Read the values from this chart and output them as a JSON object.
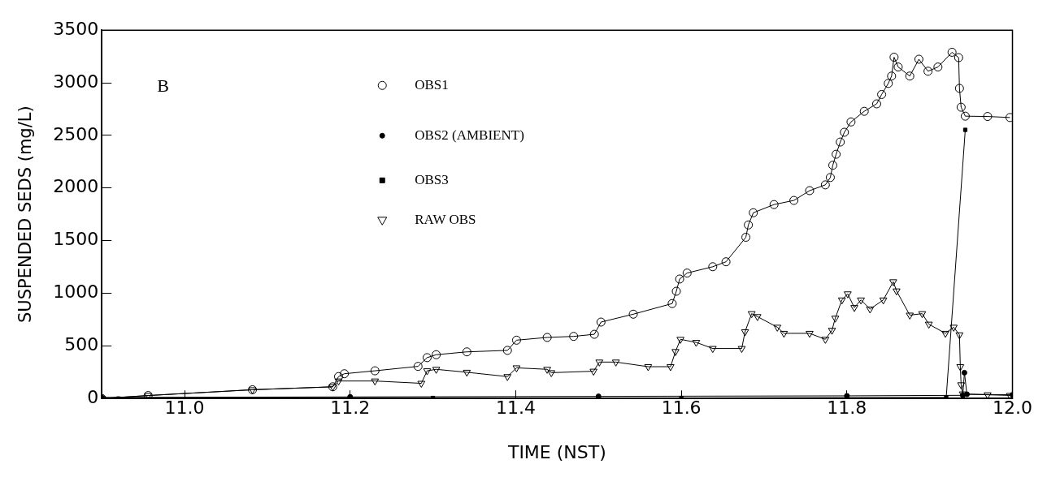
{
  "chart_data": {
    "type": "line",
    "xlabel": "TIME (NST)",
    "ylabel": "SUSPENDED SEDS (mg/L)",
    "annotations": [
      "B"
    ],
    "xlim": [
      10.9,
      12.0
    ],
    "xticks": [
      {
        "value": 11.0,
        "label": "11.0"
      },
      {
        "value": 11.2,
        "label": "11.2"
      },
      {
        "value": 11.4,
        "label": "11.4"
      },
      {
        "value": 11.6,
        "label": "11.6"
      },
      {
        "value": 11.8,
        "label": "11.8"
      },
      {
        "value": 12.0,
        "label": "12.0"
      }
    ],
    "ylim": [
      0,
      3500
    ],
    "yticks": [
      0,
      500,
      1000,
      1500,
      2000,
      2500,
      3000,
      3500
    ],
    "legend": "top left",
    "series": [
      {
        "name": "OBS1",
        "color": "#000000",
        "marker": "circle",
        "x": [
          10.9,
          10.956,
          11.082,
          11.179,
          11.186,
          11.193,
          11.23,
          11.282,
          11.293,
          11.304,
          11.341,
          11.39,
          11.401,
          11.438,
          11.47,
          11.495,
          11.503,
          11.542,
          11.589,
          11.594,
          11.598,
          11.607,
          11.638,
          11.654,
          11.678,
          11.681,
          11.687,
          11.712,
          11.736,
          11.755,
          11.774,
          11.78,
          11.783,
          11.787,
          11.792,
          11.797,
          11.805,
          11.821,
          11.836,
          11.842,
          11.85,
          11.854,
          11.857,
          11.862,
          11.876,
          11.887,
          11.898,
          11.91,
          11.927,
          11.935,
          11.936,
          11.938,
          11.943,
          11.97,
          11.997
        ],
        "values": [
          0,
          28,
          83,
          111,
          208,
          235,
          263,
          305,
          388,
          416,
          443,
          457,
          554,
          580,
          590,
          610,
          726,
          801,
          902,
          1019,
          1135,
          1192,
          1252,
          1299,
          1532,
          1649,
          1765,
          1843,
          1882,
          1975,
          2030,
          2100,
          2216,
          2321,
          2437,
          2530,
          2628,
          2729,
          2800,
          2889,
          2994,
          3064,
          3243,
          3150,
          3064,
          3224,
          3110,
          3150,
          3290,
          3239,
          2947,
          2768,
          2683,
          2680,
          2670
        ]
      },
      {
        "name": "OBS2 (AMBIENT)",
        "color": "#000000",
        "marker": "circle",
        "x": [
          10.9,
          11.2,
          11.5,
          11.8,
          11.94,
          11.942,
          11.945,
          12.0
        ],
        "values": [
          10,
          15,
          20,
          25,
          30,
          245,
          40,
          35
        ]
      },
      {
        "name": "OBS3",
        "color": "#000000",
        "marker": "square",
        "x": [
          10.92,
          11.3,
          11.6,
          11.92,
          11.943
        ],
        "values": [
          0,
          5,
          5,
          10,
          2553
        ]
      },
      {
        "name": "RAW OBS",
        "color": "#000000",
        "marker": "triangle",
        "x": [
          10.9,
          10.956,
          11.082,
          11.179,
          11.186,
          11.23,
          11.286,
          11.293,
          11.304,
          11.341,
          11.39,
          11.401,
          11.438,
          11.443,
          11.494,
          11.501,
          11.521,
          11.56,
          11.587,
          11.593,
          11.599,
          11.618,
          11.638,
          11.673,
          11.677,
          11.685,
          11.692,
          11.716,
          11.724,
          11.755,
          11.774,
          11.782,
          11.786,
          11.794,
          11.801,
          11.809,
          11.817,
          11.828,
          11.844,
          11.856,
          11.86,
          11.876,
          11.891,
          11.899,
          11.919,
          11.929,
          11.936,
          11.937,
          11.938,
          11.94,
          11.97,
          11.997
        ],
        "values": [
          0,
          28,
          83,
          111,
          166,
          166,
          144,
          263,
          277,
          249,
          208,
          291,
          277,
          245,
          259,
          346,
          346,
          302,
          302,
          446,
          562,
          533,
          475,
          475,
          634,
          806,
          778,
          677,
          619,
          619,
          562,
          648,
          763,
          936,
          994,
          864,
          936,
          850,
          936,
          1109,
          1022,
          792,
          806,
          706,
          619,
          677,
          605,
          302,
          130,
          43,
          35,
          29
        ]
      }
    ]
  }
}
